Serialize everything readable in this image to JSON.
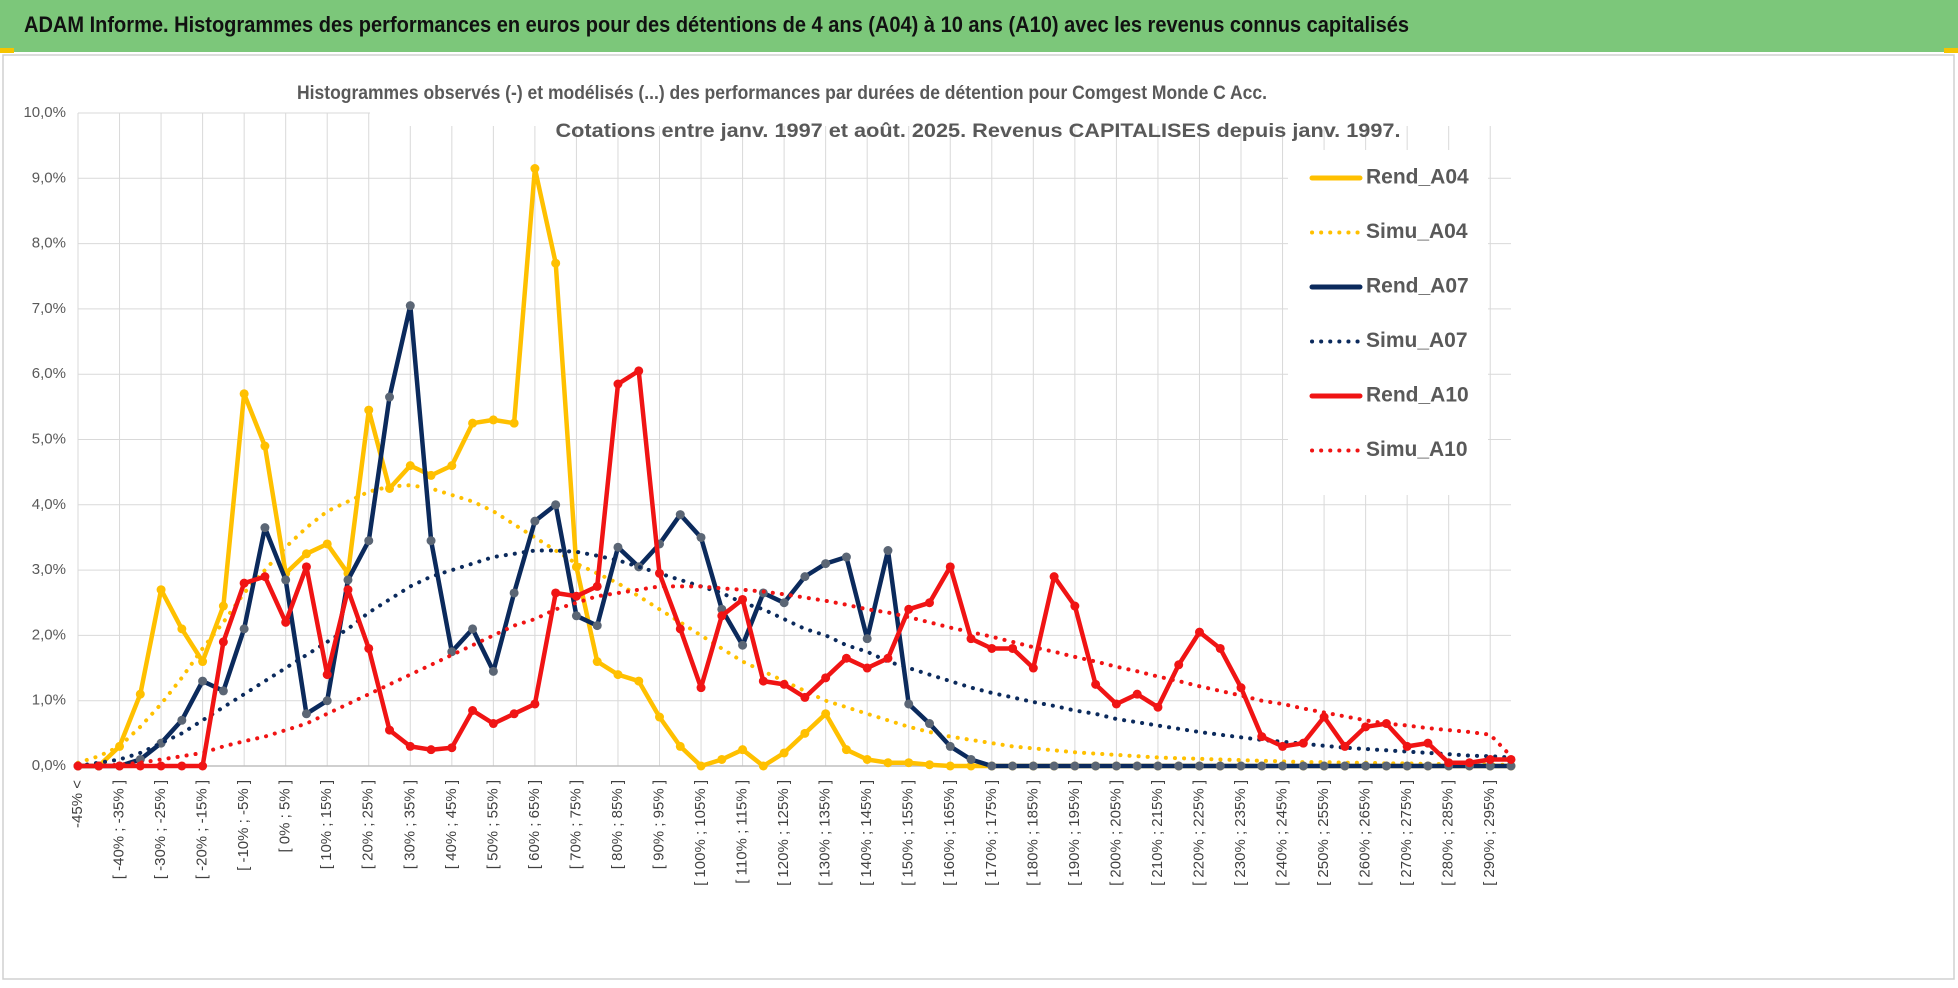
{
  "header": {
    "title": "ADAM Informe. Histogrammes des performances en euros pour des détentions de 4 ans (A04) à 10 ans (A10) avec les revenus connus capitalisés"
  },
  "chart_data": {
    "type": "line",
    "title": "Histogrammes observés (-) et modélisés (...) des performances par durées de détention pour Comgest Monde C Acc.",
    "subtitle": "Cotations entre janv. 1997 et août. 2025. Revenus CAPITALISES depuis janv. 1997.",
    "categories": [
      "-45% <",
      null,
      "[ -40% ; -35% ]",
      null,
      "[ -30% ; -25% ]",
      null,
      "[ -20% ; -15% ]",
      null,
      "[ -10% ; -5% ]",
      null,
      "[ 0% ; 5% ]",
      null,
      "[ 10% ; 15% ]",
      null,
      "[ 20% ; 25% ]",
      null,
      "[ 30% ; 35% ]",
      null,
      "[ 40% ; 45% ]",
      null,
      "[ 50% ; 55% ]",
      null,
      "[ 60% ; 65% ]",
      null,
      "[ 70% ; 75% ]",
      null,
      "[ 80% ; 85% ]",
      null,
      "[ 90% ; 95% ]",
      null,
      "[ 100% ; 105% ]",
      null,
      "[ 110% ; 115% ]",
      null,
      "[ 120% ; 125% ]",
      null,
      "[ 130% ; 135% ]",
      null,
      "[ 140% ; 145% ]",
      null,
      "[ 150% ; 155% ]",
      null,
      "[ 160% ; 165% ]",
      null,
      "[ 170% ; 175% ]",
      null,
      "[ 180% ; 185% ]",
      null,
      "[ 190% ; 195% ]",
      null,
      "[ 200% ; 205% ]",
      null,
      "[ 210% ; 215% ]",
      null,
      "[ 220% ; 225% ]",
      null,
      "[ 230% ; 235% ]",
      null,
      "[ 240% ; 245% ]",
      null,
      "[ 250% ; 255% ]",
      null,
      "[ 260% ; 265% ]",
      null,
      "[ 270% ; 275% ]",
      null,
      "[ 280% ; 285% ]",
      null,
      "[ 290% ; 295% ]",
      null
    ],
    "ylim": [
      0,
      10
    ],
    "yticks": [
      {
        "value": 0,
        "label": "0,0%"
      },
      {
        "value": 1,
        "label": "1,0%"
      },
      {
        "value": 2,
        "label": "2,0%"
      },
      {
        "value": 3,
        "label": "3,0%"
      },
      {
        "value": 4,
        "label": "4,0%"
      },
      {
        "value": 5,
        "label": "5,0%"
      },
      {
        "value": 6,
        "label": "6,0%"
      },
      {
        "value": 7,
        "label": "7,0%"
      },
      {
        "value": 8,
        "label": "8,0%"
      },
      {
        "value": 9,
        "label": "9,0%"
      },
      {
        "value": 10,
        "label": "10,0%"
      }
    ],
    "grid": true,
    "legend": "right",
    "series": [
      {
        "name": "Rend_A04",
        "color": "#ffc000",
        "style": "solid",
        "markers": true,
        "marker_color": "#ffc000",
        "values": [
          0,
          0,
          0.3,
          1.1,
          2.7,
          2.1,
          1.6,
          2.45,
          5.7,
          4.9,
          2.95,
          3.25,
          3.4,
          2.95,
          5.45,
          4.25,
          4.6,
          4.45,
          4.6,
          5.25,
          5.3,
          5.25,
          9.15,
          7.7,
          3.05,
          1.6,
          1.4,
          1.3,
          0.75,
          0.3,
          0,
          0.1,
          0.25,
          0,
          0.2,
          0.5,
          0.8,
          0.25,
          0.1,
          0.05,
          0.05,
          0.02,
          0,
          0,
          0,
          0,
          0,
          0,
          0,
          0,
          0,
          0,
          0,
          0,
          0,
          0,
          0,
          0,
          0,
          0,
          0,
          0,
          0,
          0,
          0,
          0,
          0,
          0,
          0,
          0
        ]
      },
      {
        "name": "Simu_A04",
        "color": "#ffc000",
        "style": "dotted",
        "markers": false,
        "values": [
          0.05,
          0.15,
          0.3,
          0.6,
          0.95,
          1.35,
          1.8,
          2.2,
          2.65,
          3.0,
          3.35,
          3.65,
          3.9,
          4.05,
          4.2,
          4.28,
          4.3,
          4.25,
          4.15,
          4.05,
          3.9,
          3.7,
          3.5,
          3.3,
          3.1,
          2.95,
          2.8,
          2.6,
          2.4,
          2.2,
          2.0,
          1.8,
          1.6,
          1.45,
          1.3,
          1.15,
          1.0,
          0.9,
          0.8,
          0.7,
          0.6,
          0.52,
          0.45,
          0.4,
          0.35,
          0.3,
          0.27,
          0.24,
          0.21,
          0.19,
          0.17,
          0.15,
          0.13,
          0.12,
          0.11,
          0.1,
          0.09,
          0.08,
          0.07,
          0.06,
          0.06,
          0.05,
          0.05,
          0.04,
          0.04,
          0.03,
          0.03,
          0.03,
          0.02,
          0.02
        ]
      },
      {
        "name": "Rend_A07",
        "color": "#0b2a5c",
        "style": "solid",
        "markers": true,
        "marker_color": "#5b6675",
        "values": [
          0,
          0,
          0,
          0.1,
          0.35,
          0.7,
          1.3,
          1.15,
          2.1,
          3.65,
          2.85,
          0.8,
          1.0,
          2.85,
          3.45,
          5.65,
          7.05,
          3.45,
          1.75,
          2.1,
          1.45,
          2.65,
          3.75,
          4.0,
          2.3,
          2.15,
          3.35,
          3.05,
          3.4,
          3.85,
          3.5,
          2.4,
          1.85,
          2.65,
          2.5,
          2.9,
          3.1,
          3.2,
          1.95,
          3.3,
          0.95,
          0.65,
          0.3,
          0.1,
          0,
          0,
          0,
          0,
          0,
          0,
          0,
          0,
          0,
          0,
          0,
          0,
          0,
          0,
          0,
          0,
          0,
          0,
          0,
          0,
          0,
          0,
          0,
          0,
          0,
          0
        ]
      },
      {
        "name": "Simu_A07",
        "color": "#0b2a5c",
        "style": "dotted",
        "markers": false,
        "values": [
          0,
          0.05,
          0.1,
          0.2,
          0.35,
          0.5,
          0.7,
          0.9,
          1.1,
          1.3,
          1.5,
          1.7,
          1.9,
          2.1,
          2.35,
          2.55,
          2.75,
          2.9,
          3.0,
          3.1,
          3.2,
          3.25,
          3.3,
          3.3,
          3.28,
          3.22,
          3.15,
          3.05,
          2.95,
          2.85,
          2.75,
          2.65,
          2.5,
          2.4,
          2.25,
          2.1,
          2.0,
          1.85,
          1.75,
          1.6,
          1.5,
          1.4,
          1.3,
          1.2,
          1.12,
          1.05,
          0.98,
          0.92,
          0.85,
          0.8,
          0.72,
          0.67,
          0.62,
          0.57,
          0.52,
          0.48,
          0.44,
          0.4,
          0.37,
          0.34,
          0.31,
          0.28,
          0.26,
          0.24,
          0.22,
          0.2,
          0.18,
          0.16,
          0.15,
          0.13
        ]
      },
      {
        "name": "Rend_A10",
        "color": "#f01414",
        "style": "solid",
        "markers": true,
        "marker_color": "#f01414",
        "values": [
          0,
          0,
          0,
          0,
          0,
          0,
          0,
          1.9,
          2.8,
          2.9,
          2.2,
          3.05,
          1.4,
          2.7,
          1.8,
          0.55,
          0.3,
          0.25,
          0.28,
          0.85,
          0.65,
          0.8,
          0.95,
          2.65,
          2.6,
          2.75,
          5.85,
          6.05,
          2.95,
          2.1,
          1.2,
          2.3,
          2.55,
          1.3,
          1.25,
          1.05,
          1.35,
          1.65,
          1.5,
          1.65,
          2.4,
          2.5,
          3.05,
          1.95,
          1.8,
          1.8,
          1.5,
          2.9,
          2.45,
          1.25,
          0.95,
          1.1,
          0.9,
          1.55,
          2.05,
          1.8,
          1.2,
          0.45,
          0.3,
          0.35,
          0.75,
          0.3,
          0.6,
          0.65,
          0.3,
          0.35,
          0.05,
          0.05,
          0.1,
          0.1
        ]
      },
      {
        "name": "Simu_A10",
        "color": "#f01414",
        "style": "dotted",
        "markers": false,
        "values": [
          0,
          0,
          0.02,
          0.05,
          0.1,
          0.15,
          0.2,
          0.3,
          0.38,
          0.45,
          0.55,
          0.65,
          0.8,
          0.95,
          1.1,
          1.25,
          1.4,
          1.55,
          1.7,
          1.85,
          2.0,
          2.15,
          2.25,
          2.4,
          2.5,
          2.6,
          2.65,
          2.7,
          2.75,
          2.75,
          2.75,
          2.72,
          2.7,
          2.67,
          2.63,
          2.58,
          2.53,
          2.47,
          2.4,
          2.35,
          2.28,
          2.2,
          2.12,
          2.05,
          1.98,
          1.9,
          1.82,
          1.75,
          1.67,
          1.6,
          1.52,
          1.45,
          1.37,
          1.3,
          1.22,
          1.15,
          1.08,
          1.0,
          0.95,
          0.88,
          0.82,
          0.76,
          0.7,
          0.65,
          0.62,
          0.58,
          0.55,
          0.52,
          0.48,
          0.15
        ]
      }
    ]
  }
}
